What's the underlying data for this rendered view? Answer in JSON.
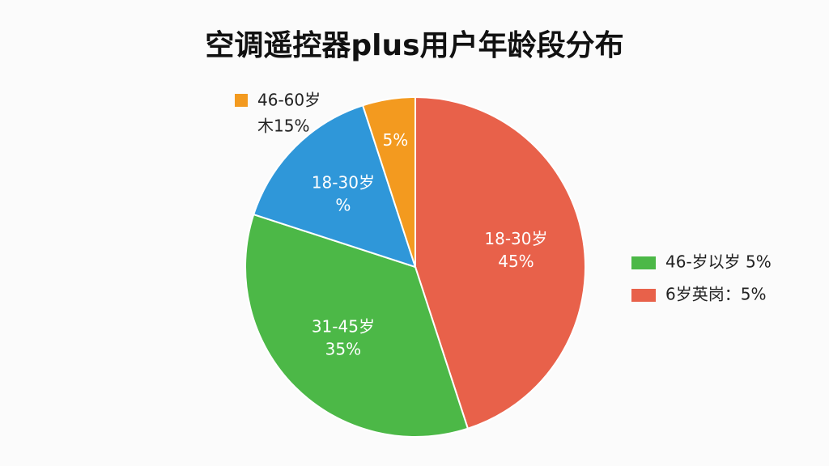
{
  "chart_data": {
    "type": "pie",
    "title": "空调遥控器plus用户年龄段分布",
    "categories": [
      "18-30岁",
      "31-45岁",
      "18-30岁",
      null
    ],
    "values": [
      45,
      35,
      15,
      5
    ],
    "value_labels": [
      "45%",
      "35%",
      "%",
      "5%"
    ],
    "colors": [
      "#e8614a",
      "#4cb847",
      "#2f97d9",
      "#f39a1f"
    ],
    "legend": [
      {
        "label": "46-60岁",
        "sublabel": "木15%",
        "color": "#f39a1f",
        "position": "top-left"
      },
      {
        "label": "46-岁以岁   5%",
        "color": "#4cb847",
        "position": "right"
      },
      {
        "label": "6岁英岗：5%",
        "color": "#e8614a",
        "position": "right"
      }
    ]
  }
}
